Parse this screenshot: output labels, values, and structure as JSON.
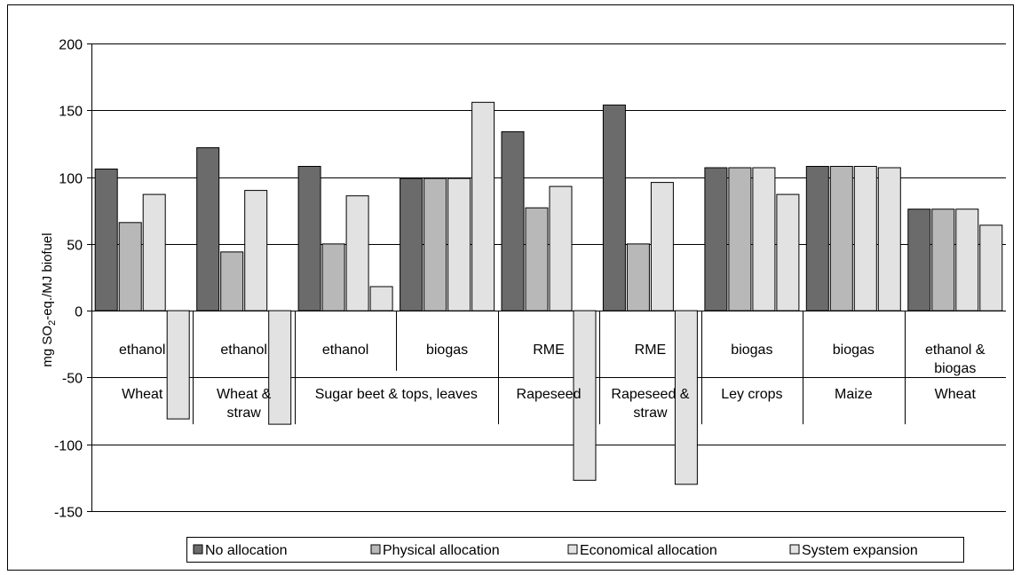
{
  "chart_data": {
    "type": "bar",
    "title": "",
    "ylabel": "mg SO2-eq./MJ biofuel",
    "ylabel_main": "mg SO",
    "ylabel_sub": "2",
    "ylabel_rest": "-eq./MJ biofuel",
    "ylim": [
      -150,
      200
    ],
    "yticks": [
      "200",
      "150",
      "100",
      "50",
      "0",
      "-50",
      "-100",
      "-150"
    ],
    "grid": true,
    "legend_position": "bottom",
    "groups": [
      {
        "product": [
          "ethanol"
        ],
        "feedstock": [
          "Wheat"
        ]
      },
      {
        "product": [
          "ethanol"
        ],
        "feedstock": [
          "Wheat &",
          "straw"
        ]
      },
      {
        "product": [
          "ethanol"
        ],
        "feedstock": []
      },
      {
        "product": [
          "biogas"
        ],
        "feedstock": []
      },
      {
        "product": [
          "RME"
        ],
        "feedstock": [
          "Rapeseed"
        ]
      },
      {
        "product": [
          "RME"
        ],
        "feedstock": [
          "Rapeseed &",
          "straw"
        ]
      },
      {
        "product": [
          "biogas"
        ],
        "feedstock": [
          "Ley crops"
        ]
      },
      {
        "product": [
          "biogas"
        ],
        "feedstock": [
          "Maize"
        ]
      },
      {
        "product": [
          "ethanol &",
          "biogas"
        ],
        "feedstock": [
          "Wheat"
        ]
      }
    ],
    "spanning_feedstock": {
      "label": "Sugar beet & tops, leaves",
      "from_group": 2,
      "to_group": 3
    },
    "series": [
      {
        "name": "No allocation",
        "color": "#6b6b6b",
        "values": [
          106,
          122,
          108,
          99,
          134,
          154,
          107,
          108,
          76
        ]
      },
      {
        "name": "Physical allocation",
        "color": "#b8b8b8",
        "values": [
          66,
          44,
          50,
          99,
          77,
          50,
          107,
          108,
          76
        ]
      },
      {
        "name": "Economical allocation",
        "color": "#e2e2e2",
        "values": [
          87,
          90,
          86,
          99,
          93,
          96,
          107,
          108,
          76
        ]
      },
      {
        "name": "System expansion",
        "color": "#e2e2e2",
        "values": [
          -81,
          -85,
          18,
          156,
          -127,
          -130,
          87,
          107,
          64
        ]
      }
    ]
  }
}
